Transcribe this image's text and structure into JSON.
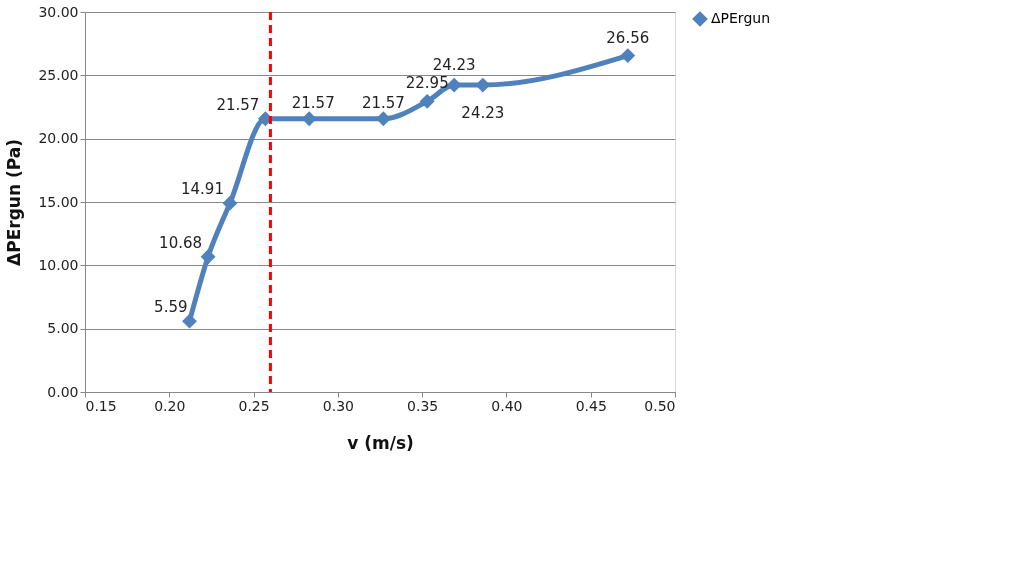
{
  "chart_data": {
    "type": "line",
    "xlabel": "v (m/s)",
    "ylabel": "ΔPErgun (Pa)",
    "x": [
      0.212,
      0.223,
      0.236,
      0.257,
      0.283,
      0.327,
      0.353,
      0.369,
      0.386,
      0.472
    ],
    "series": [
      {
        "name": "ΔPErgun",
        "color": "#4f81bd",
        "values": [
          5.59,
          10.68,
          14.91,
          21.57,
          21.57,
          21.57,
          22.95,
          24.23,
          24.23,
          26.56
        ]
      }
    ],
    "xlim": [
      0.15,
      0.5
    ],
    "xticks": [
      {
        "value": 0.15,
        "label": "0.15"
      },
      {
        "value": 0.2,
        "label": "0.20"
      },
      {
        "value": 0.25,
        "label": "0.25"
      },
      {
        "value": 0.3,
        "label": "0.30"
      },
      {
        "value": 0.35,
        "label": "0.35"
      },
      {
        "value": 0.4,
        "label": "0.40"
      },
      {
        "value": 0.45,
        "label": "0.45"
      },
      {
        "value": 0.5,
        "label": "0.50"
      }
    ],
    "ylim": [
      0,
      30
    ],
    "yticks": [
      {
        "value": 0,
        "label": "0.00"
      },
      {
        "value": 5,
        "label": "5.00"
      },
      {
        "value": 10,
        "label": "10.00"
      },
      {
        "value": 15,
        "label": "15.00"
      },
      {
        "value": 20,
        "label": "20.00"
      },
      {
        "value": 25,
        "label": "25.00"
      },
      {
        "value": 30,
        "label": "30.00"
      }
    ],
    "ref_lines": [
      {
        "axis": "x",
        "value": 0.26,
        "color": "#ff0000",
        "line_style": "dashed"
      }
    ],
    "data_labels": true,
    "grid": "y",
    "legend": "right",
    "marker": "diamond",
    "line_style": "solid"
  }
}
